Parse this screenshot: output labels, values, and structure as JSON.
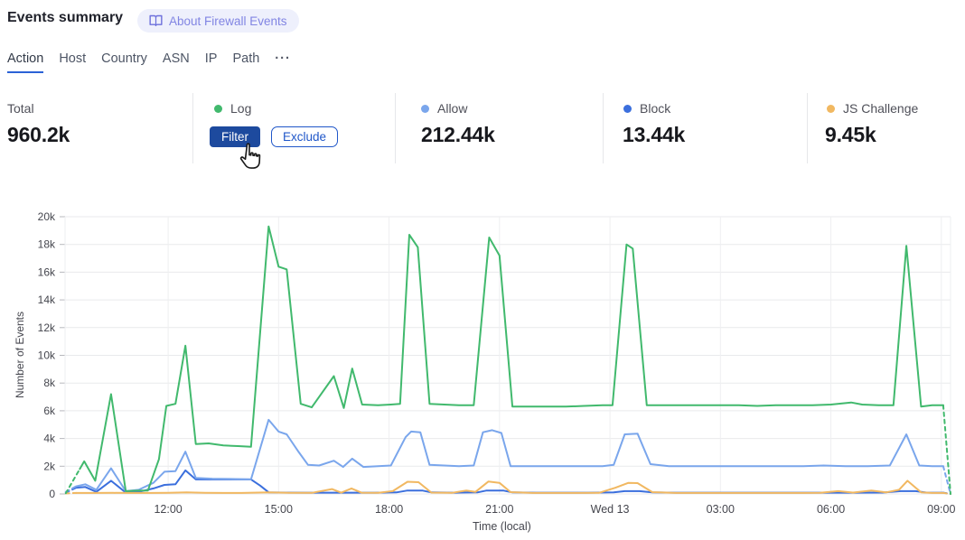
{
  "header": {
    "title": "Events summary",
    "about_badge": "About Firewall Events"
  },
  "tabs": {
    "items": [
      {
        "label": "Action",
        "active": true
      },
      {
        "label": "Host"
      },
      {
        "label": "Country"
      },
      {
        "label": "ASN"
      },
      {
        "label": "IP"
      },
      {
        "label": "Path"
      }
    ],
    "more": "···"
  },
  "stats": {
    "total": {
      "label": "Total",
      "value": "960.2k"
    },
    "cards": [
      {
        "label": "Log",
        "color": "#41b96d",
        "buttons": [
          "Filter",
          "Exclude"
        ]
      },
      {
        "label": "Allow",
        "color": "#7aa6ec",
        "value": "212.44k"
      },
      {
        "label": "Block",
        "color": "#3b6fdd",
        "value": "13.44k"
      },
      {
        "label": "JS Challenge",
        "color": "#f1b861",
        "value": "9.45k"
      }
    ]
  },
  "colors": {
    "grid": "#e9eaec",
    "grid_vertical": "#eeeff1",
    "tick_mark": "#b7b8bd",
    "accent_blue": "#2057c9",
    "filter_button": "#1d4a9e",
    "active_tab_underline": "#2b62d6",
    "badge_bg": "#eef0fc",
    "badge_text": "#8185e3"
  },
  "chart_data": {
    "type": "line",
    "title": "",
    "xlabel": "Time (local)",
    "ylabel": "Number of Events",
    "xlim": [
      9.2,
      33.25
    ],
    "ylim": [
      0,
      20000
    ],
    "grid": true,
    "legend_position": "none",
    "x_ticks": [
      {
        "t": 12,
        "label": "12:00"
      },
      {
        "t": 15,
        "label": "15:00"
      },
      {
        "t": 18,
        "label": "18:00"
      },
      {
        "t": 21,
        "label": "21:00"
      },
      {
        "t": 24,
        "label": "Wed 13"
      },
      {
        "t": 27,
        "label": "03:00"
      },
      {
        "t": 30,
        "label": "06:00"
      },
      {
        "t": 33,
        "label": "09:00"
      }
    ],
    "y_ticks": [
      {
        "v": 0,
        "label": "0"
      },
      {
        "v": 2000,
        "label": "2k"
      },
      {
        "v": 4000,
        "label": "4k"
      },
      {
        "v": 6000,
        "label": "6k"
      },
      {
        "v": 8000,
        "label": "8k"
      },
      {
        "v": 10000,
        "label": "10k"
      },
      {
        "v": 12000,
        "label": "12k"
      },
      {
        "v": 14000,
        "label": "14k"
      },
      {
        "v": 16000,
        "label": "16k"
      },
      {
        "v": 18000,
        "label": "18k"
      },
      {
        "v": 20000,
        "label": "20k"
      }
    ],
    "series": [
      {
        "name": "Block",
        "color": "#3b6fdd",
        "dash_start": [
          [
            9.22,
            100
          ],
          [
            9.5,
            450
          ]
        ],
        "points": [
          [
            9.5,
            450
          ],
          [
            9.75,
            500
          ],
          [
            10.05,
            150
          ],
          [
            10.45,
            950
          ],
          [
            10.85,
            100
          ],
          [
            11.2,
            150
          ],
          [
            11.6,
            400
          ],
          [
            11.9,
            650
          ],
          [
            12.2,
            700
          ],
          [
            12.47,
            1700
          ],
          [
            12.75,
            1050
          ],
          [
            13.2,
            1050
          ],
          [
            13.7,
            1050
          ],
          [
            14.25,
            1050
          ],
          [
            14.5,
            600
          ],
          [
            14.73,
            120
          ],
          [
            15.2,
            100
          ],
          [
            15.8,
            90
          ],
          [
            16.4,
            90
          ],
          [
            17.0,
            90
          ],
          [
            17.6,
            90
          ],
          [
            18.2,
            110
          ],
          [
            18.5,
            250
          ],
          [
            18.9,
            250
          ],
          [
            19.15,
            110
          ],
          [
            19.8,
            90
          ],
          [
            20.4,
            110
          ],
          [
            20.65,
            250
          ],
          [
            21.1,
            250
          ],
          [
            21.35,
            110
          ],
          [
            22.0,
            90
          ],
          [
            22.7,
            90
          ],
          [
            23.4,
            90
          ],
          [
            24.1,
            110
          ],
          [
            24.4,
            200
          ],
          [
            24.8,
            200
          ],
          [
            25.15,
            110
          ],
          [
            25.8,
            90
          ],
          [
            26.6,
            90
          ],
          [
            27.4,
            90
          ],
          [
            28.2,
            90
          ],
          [
            29.0,
            90
          ],
          [
            29.8,
            90
          ],
          [
            30.6,
            90
          ],
          [
            31.4,
            100
          ],
          [
            31.9,
            200
          ],
          [
            32.3,
            200
          ],
          [
            32.6,
            100
          ],
          [
            33.05,
            90
          ]
        ],
        "dash_end": [
          [
            33.05,
            90
          ],
          [
            33.25,
            0
          ]
        ]
      },
      {
        "name": "JS Challenge",
        "color": "#f1b861",
        "dash_start": [
          [
            9.22,
            40
          ],
          [
            9.5,
            70
          ]
        ],
        "points": [
          [
            9.5,
            70
          ],
          [
            10.0,
            70
          ],
          [
            10.5,
            80
          ],
          [
            11.0,
            70
          ],
          [
            11.5,
            70
          ],
          [
            12.0,
            80
          ],
          [
            12.5,
            110
          ],
          [
            13.0,
            80
          ],
          [
            13.5,
            70
          ],
          [
            14.0,
            70
          ],
          [
            14.73,
            120
          ],
          [
            15.3,
            80
          ],
          [
            15.9,
            80
          ],
          [
            16.45,
            350
          ],
          [
            16.7,
            90
          ],
          [
            16.98,
            400
          ],
          [
            17.25,
            90
          ],
          [
            17.7,
            80
          ],
          [
            18.1,
            200
          ],
          [
            18.5,
            880
          ],
          [
            18.8,
            850
          ],
          [
            19.15,
            100
          ],
          [
            19.7,
            80
          ],
          [
            20.1,
            250
          ],
          [
            20.35,
            150
          ],
          [
            20.7,
            900
          ],
          [
            21.0,
            800
          ],
          [
            21.3,
            130
          ],
          [
            21.9,
            70
          ],
          [
            22.5,
            70
          ],
          [
            23.1,
            70
          ],
          [
            23.7,
            80
          ],
          [
            24.15,
            450
          ],
          [
            24.5,
            800
          ],
          [
            24.75,
            780
          ],
          [
            25.15,
            130
          ],
          [
            25.8,
            70
          ],
          [
            26.6,
            70
          ],
          [
            27.4,
            70
          ],
          [
            28.2,
            70
          ],
          [
            29.0,
            70
          ],
          [
            29.7,
            80
          ],
          [
            30.2,
            200
          ],
          [
            30.6,
            100
          ],
          [
            31.1,
            250
          ],
          [
            31.5,
            110
          ],
          [
            31.85,
            300
          ],
          [
            32.08,
            950
          ],
          [
            32.45,
            120
          ],
          [
            32.75,
            70
          ],
          [
            33.05,
            70
          ]
        ],
        "dash_end": [
          [
            33.05,
            70
          ],
          [
            33.25,
            0
          ]
        ]
      },
      {
        "name": "Allow",
        "color": "#7aa6ec",
        "dash_start": [
          [
            9.22,
            150
          ],
          [
            9.5,
            550
          ]
        ],
        "points": [
          [
            9.5,
            550
          ],
          [
            9.75,
            700
          ],
          [
            10.05,
            300
          ],
          [
            10.45,
            1850
          ],
          [
            10.85,
            200
          ],
          [
            11.2,
            300
          ],
          [
            11.6,
            800
          ],
          [
            11.9,
            1600
          ],
          [
            12.2,
            1650
          ],
          [
            12.47,
            3050
          ],
          [
            12.75,
            1150
          ],
          [
            13.2,
            1100
          ],
          [
            13.7,
            1080
          ],
          [
            14.25,
            1050
          ],
          [
            14.73,
            5350
          ],
          [
            15.0,
            4500
          ],
          [
            15.22,
            4300
          ],
          [
            15.55,
            3000
          ],
          [
            15.8,
            2100
          ],
          [
            16.1,
            2050
          ],
          [
            16.5,
            2400
          ],
          [
            16.75,
            1950
          ],
          [
            17.0,
            2550
          ],
          [
            17.3,
            1950
          ],
          [
            17.7,
            2000
          ],
          [
            18.05,
            2050
          ],
          [
            18.45,
            4100
          ],
          [
            18.6,
            4500
          ],
          [
            18.85,
            4450
          ],
          [
            19.1,
            2100
          ],
          [
            19.5,
            2050
          ],
          [
            19.9,
            2000
          ],
          [
            20.3,
            2050
          ],
          [
            20.55,
            4450
          ],
          [
            20.8,
            4600
          ],
          [
            21.05,
            4400
          ],
          [
            21.3,
            2000
          ],
          [
            21.8,
            2000
          ],
          [
            22.3,
            2000
          ],
          [
            22.8,
            2000
          ],
          [
            23.3,
            2000
          ],
          [
            23.8,
            2000
          ],
          [
            24.1,
            2100
          ],
          [
            24.4,
            4300
          ],
          [
            24.75,
            4350
          ],
          [
            25.1,
            2150
          ],
          [
            25.6,
            2000
          ],
          [
            26.2,
            2000
          ],
          [
            26.8,
            2000
          ],
          [
            27.4,
            2000
          ],
          [
            28.0,
            2000
          ],
          [
            28.6,
            2000
          ],
          [
            29.2,
            2000
          ],
          [
            29.8,
            2050
          ],
          [
            30.4,
            2000
          ],
          [
            31.0,
            2000
          ],
          [
            31.6,
            2050
          ],
          [
            32.05,
            4300
          ],
          [
            32.4,
            2050
          ],
          [
            32.75,
            2000
          ],
          [
            33.05,
            2000
          ]
        ],
        "dash_end": [
          [
            33.05,
            2000
          ],
          [
            33.25,
            0
          ]
        ]
      },
      {
        "name": "Log",
        "color": "#41b96d",
        "dash_start": [
          [
            9.22,
            50
          ],
          [
            9.6,
            1800
          ]
        ],
        "points": [
          [
            9.6,
            1800
          ],
          [
            9.72,
            2350
          ],
          [
            10.02,
            950
          ],
          [
            10.45,
            7200
          ],
          [
            10.85,
            200
          ],
          [
            11.2,
            250
          ],
          [
            11.45,
            250
          ],
          [
            11.75,
            2500
          ],
          [
            11.95,
            6350
          ],
          [
            12.2,
            6500
          ],
          [
            12.47,
            10700
          ],
          [
            12.75,
            3600
          ],
          [
            13.1,
            3650
          ],
          [
            13.5,
            3500
          ],
          [
            13.9,
            3450
          ],
          [
            14.25,
            3400
          ],
          [
            14.73,
            19300
          ],
          [
            15.0,
            16400
          ],
          [
            15.22,
            16200
          ],
          [
            15.6,
            6500
          ],
          [
            15.9,
            6250
          ],
          [
            16.5,
            8500
          ],
          [
            16.77,
            6200
          ],
          [
            17.0,
            9050
          ],
          [
            17.27,
            6450
          ],
          [
            17.7,
            6400
          ],
          [
            18.05,
            6450
          ],
          [
            18.3,
            6500
          ],
          [
            18.55,
            18700
          ],
          [
            18.78,
            17800
          ],
          [
            19.1,
            6500
          ],
          [
            19.5,
            6450
          ],
          [
            19.9,
            6400
          ],
          [
            20.3,
            6400
          ],
          [
            20.72,
            18500
          ],
          [
            21.0,
            17200
          ],
          [
            21.35,
            6300
          ],
          [
            21.8,
            6300
          ],
          [
            22.3,
            6300
          ],
          [
            22.8,
            6300
          ],
          [
            23.3,
            6350
          ],
          [
            23.8,
            6400
          ],
          [
            24.07,
            6400
          ],
          [
            24.45,
            18000
          ],
          [
            24.62,
            17700
          ],
          [
            25.0,
            6400
          ],
          [
            25.5,
            6400
          ],
          [
            26.0,
            6400
          ],
          [
            26.5,
            6400
          ],
          [
            27.0,
            6400
          ],
          [
            27.5,
            6400
          ],
          [
            28.0,
            6350
          ],
          [
            28.5,
            6400
          ],
          [
            29.0,
            6400
          ],
          [
            29.5,
            6400
          ],
          [
            30.0,
            6450
          ],
          [
            30.55,
            6600
          ],
          [
            30.85,
            6450
          ],
          [
            31.3,
            6400
          ],
          [
            31.7,
            6400
          ],
          [
            32.05,
            17900
          ],
          [
            32.45,
            6300
          ],
          [
            32.75,
            6400
          ],
          [
            33.05,
            6400
          ]
        ],
        "dash_end": [
          [
            33.05,
            6400
          ],
          [
            33.25,
            0
          ]
        ]
      }
    ]
  }
}
